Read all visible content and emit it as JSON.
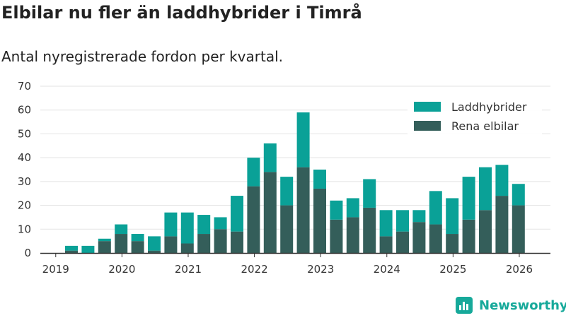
{
  "header": {
    "title": "Elbilar nu fler än laddhybrider i Timrå",
    "subtitle": "Antal nyregistrerade fordon per kvartal."
  },
  "brand": {
    "name": "Newsworthy",
    "icon": "bar-chart-logo-icon",
    "color": "#16a99a"
  },
  "chart_data": {
    "type": "bar",
    "stacked": true,
    "title": "Elbilar nu fler än laddhybrider i Timrå",
    "subtitle": "Antal nyregistrerade fordon per kvartal.",
    "xlabel": "",
    "ylabel": "",
    "ylim": [
      0,
      70
    ],
    "yticks": [
      0,
      10,
      20,
      30,
      40,
      50,
      60,
      70
    ],
    "grid": true,
    "legend_position": "top-right",
    "xticks": [
      "2019",
      "2020",
      "2021",
      "2022",
      "2023",
      "2024",
      "2025",
      "2026"
    ],
    "categories": [
      "2019 Q2",
      "2019 Q3",
      "2019 Q4",
      "2020 Q1",
      "2020 Q2",
      "2020 Q3",
      "2020 Q4",
      "2021 Q1",
      "2021 Q2",
      "2021 Q3",
      "2021 Q4",
      "2022 Q1",
      "2022 Q2",
      "2022 Q3",
      "2022 Q4",
      "2023 Q1",
      "2023 Q2",
      "2023 Q3",
      "2023 Q4",
      "2024 Q1",
      "2024 Q2",
      "2024 Q3",
      "2024 Q4",
      "2025 Q1",
      "2025 Q2",
      "2025 Q3",
      "2025 Q4",
      "2026 Q1"
    ],
    "series": [
      {
        "name": "Rena elbilar",
        "color": "#345e5a",
        "values": [
          1,
          0,
          5,
          8,
          5,
          1,
          7,
          4,
          8,
          10,
          9,
          28,
          34,
          20,
          36,
          27,
          14,
          15,
          19,
          7,
          9,
          13,
          12,
          8,
          14,
          18,
          24,
          20
        ]
      },
      {
        "name": "Laddhybrider",
        "color": "#0aa197",
        "values": [
          2,
          3,
          1,
          4,
          3,
          6,
          10,
          13,
          8,
          5,
          15,
          12,
          12,
          12,
          23,
          8,
          8,
          8,
          12,
          11,
          9,
          5,
          14,
          15,
          18,
          18,
          13,
          9
        ]
      }
    ]
  }
}
